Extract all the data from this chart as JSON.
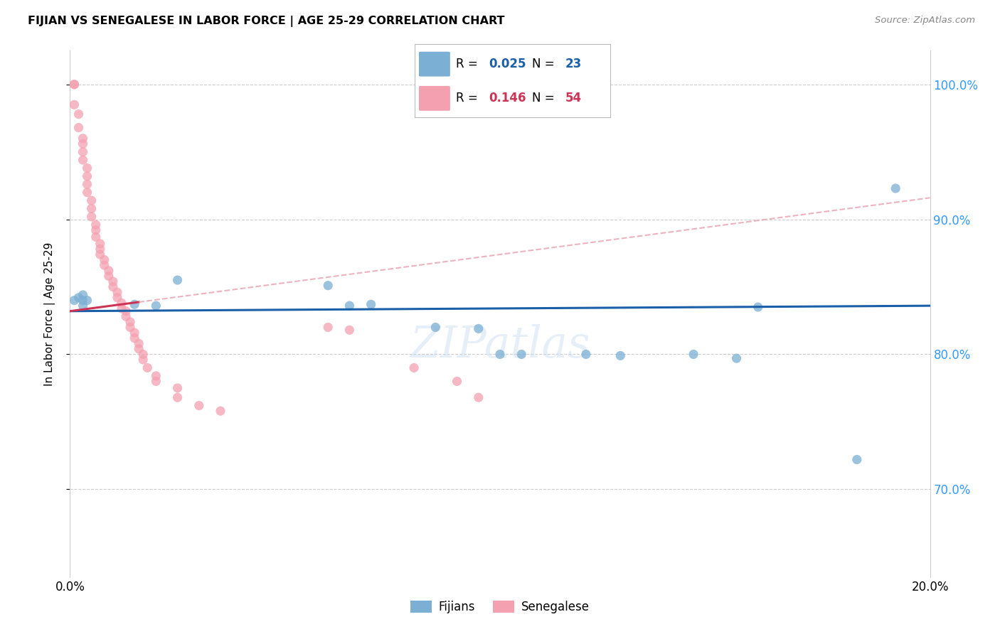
{
  "title": "FIJIAN VS SENEGALESE IN LABOR FORCE | AGE 25-29 CORRELATION CHART",
  "source": "Source: ZipAtlas.com",
  "ylabel": "In Labor Force | Age 25-29",
  "xlim": [
    0.0,
    0.2
  ],
  "ylim": [
    0.635,
    1.025
  ],
  "yticks": [
    0.7,
    0.8,
    0.9,
    1.0
  ],
  "ytick_labels": [
    "70.0%",
    "80.0%",
    "90.0%",
    "100.0%"
  ],
  "xticks": [
    0.0,
    0.05,
    0.1,
    0.15,
    0.2
  ],
  "xtick_labels": [
    "0.0%",
    "",
    "",
    "",
    "20.0%"
  ],
  "fijian_color": "#7bafd4",
  "senegalese_color": "#f4a0b0",
  "fijian_line_color": "#1a5fa8",
  "senegalese_line_color": "#cc3355",
  "senegalese_dashed_color": "#e8a0b0",
  "R_fijian": "0.025",
  "N_fijian": "23",
  "R_senegalese": "0.146",
  "N_senegalese": "54",
  "legend_color_fijian": "#1a5fa8",
  "legend_color_senegalese": "#cc3355",
  "background_color": "#ffffff",
  "grid_color": "#cccccc",
  "watermark": "ZIPatlas",
  "fijian_x": [
    0.001,
    0.002,
    0.003,
    0.003,
    0.003,
    0.004,
    0.015,
    0.02,
    0.025,
    0.06,
    0.065,
    0.07,
    0.085,
    0.095,
    0.1,
    0.105,
    0.12,
    0.128,
    0.145,
    0.155,
    0.16,
    0.183,
    0.192
  ],
  "fijian_y": [
    0.84,
    0.842,
    0.844,
    0.84,
    0.836,
    0.84,
    0.837,
    0.836,
    0.855,
    0.851,
    0.836,
    0.837,
    0.82,
    0.819,
    0.8,
    0.8,
    0.8,
    0.799,
    0.8,
    0.797,
    0.835,
    0.722,
    0.923
  ],
  "senegalese_x": [
    0.001,
    0.001,
    0.001,
    0.002,
    0.002,
    0.003,
    0.003,
    0.003,
    0.003,
    0.004,
    0.004,
    0.004,
    0.004,
    0.005,
    0.005,
    0.005,
    0.006,
    0.006,
    0.006,
    0.007,
    0.007,
    0.007,
    0.008,
    0.008,
    0.009,
    0.009,
    0.01,
    0.01,
    0.011,
    0.011,
    0.012,
    0.012,
    0.013,
    0.013,
    0.014,
    0.014,
    0.015,
    0.015,
    0.016,
    0.016,
    0.017,
    0.017,
    0.018,
    0.02,
    0.02,
    0.025,
    0.025,
    0.03,
    0.035,
    0.06,
    0.065,
    0.08,
    0.09,
    0.095
  ],
  "senegalese_y": [
    1.0,
    1.0,
    0.985,
    0.978,
    0.968,
    0.96,
    0.956,
    0.95,
    0.944,
    0.938,
    0.932,
    0.926,
    0.92,
    0.914,
    0.908,
    0.902,
    0.896,
    0.892,
    0.887,
    0.882,
    0.878,
    0.874,
    0.87,
    0.866,
    0.862,
    0.858,
    0.854,
    0.85,
    0.846,
    0.842,
    0.838,
    0.834,
    0.832,
    0.828,
    0.824,
    0.82,
    0.816,
    0.812,
    0.808,
    0.804,
    0.8,
    0.796,
    0.79,
    0.784,
    0.78,
    0.775,
    0.768,
    0.762,
    0.758,
    0.82,
    0.818,
    0.79,
    0.78,
    0.768
  ],
  "fijian_line_y0": 0.832,
  "fijian_line_y1": 0.836,
  "senegalese_line_y0": 0.832,
  "senegalese_line_y1": 0.916
}
